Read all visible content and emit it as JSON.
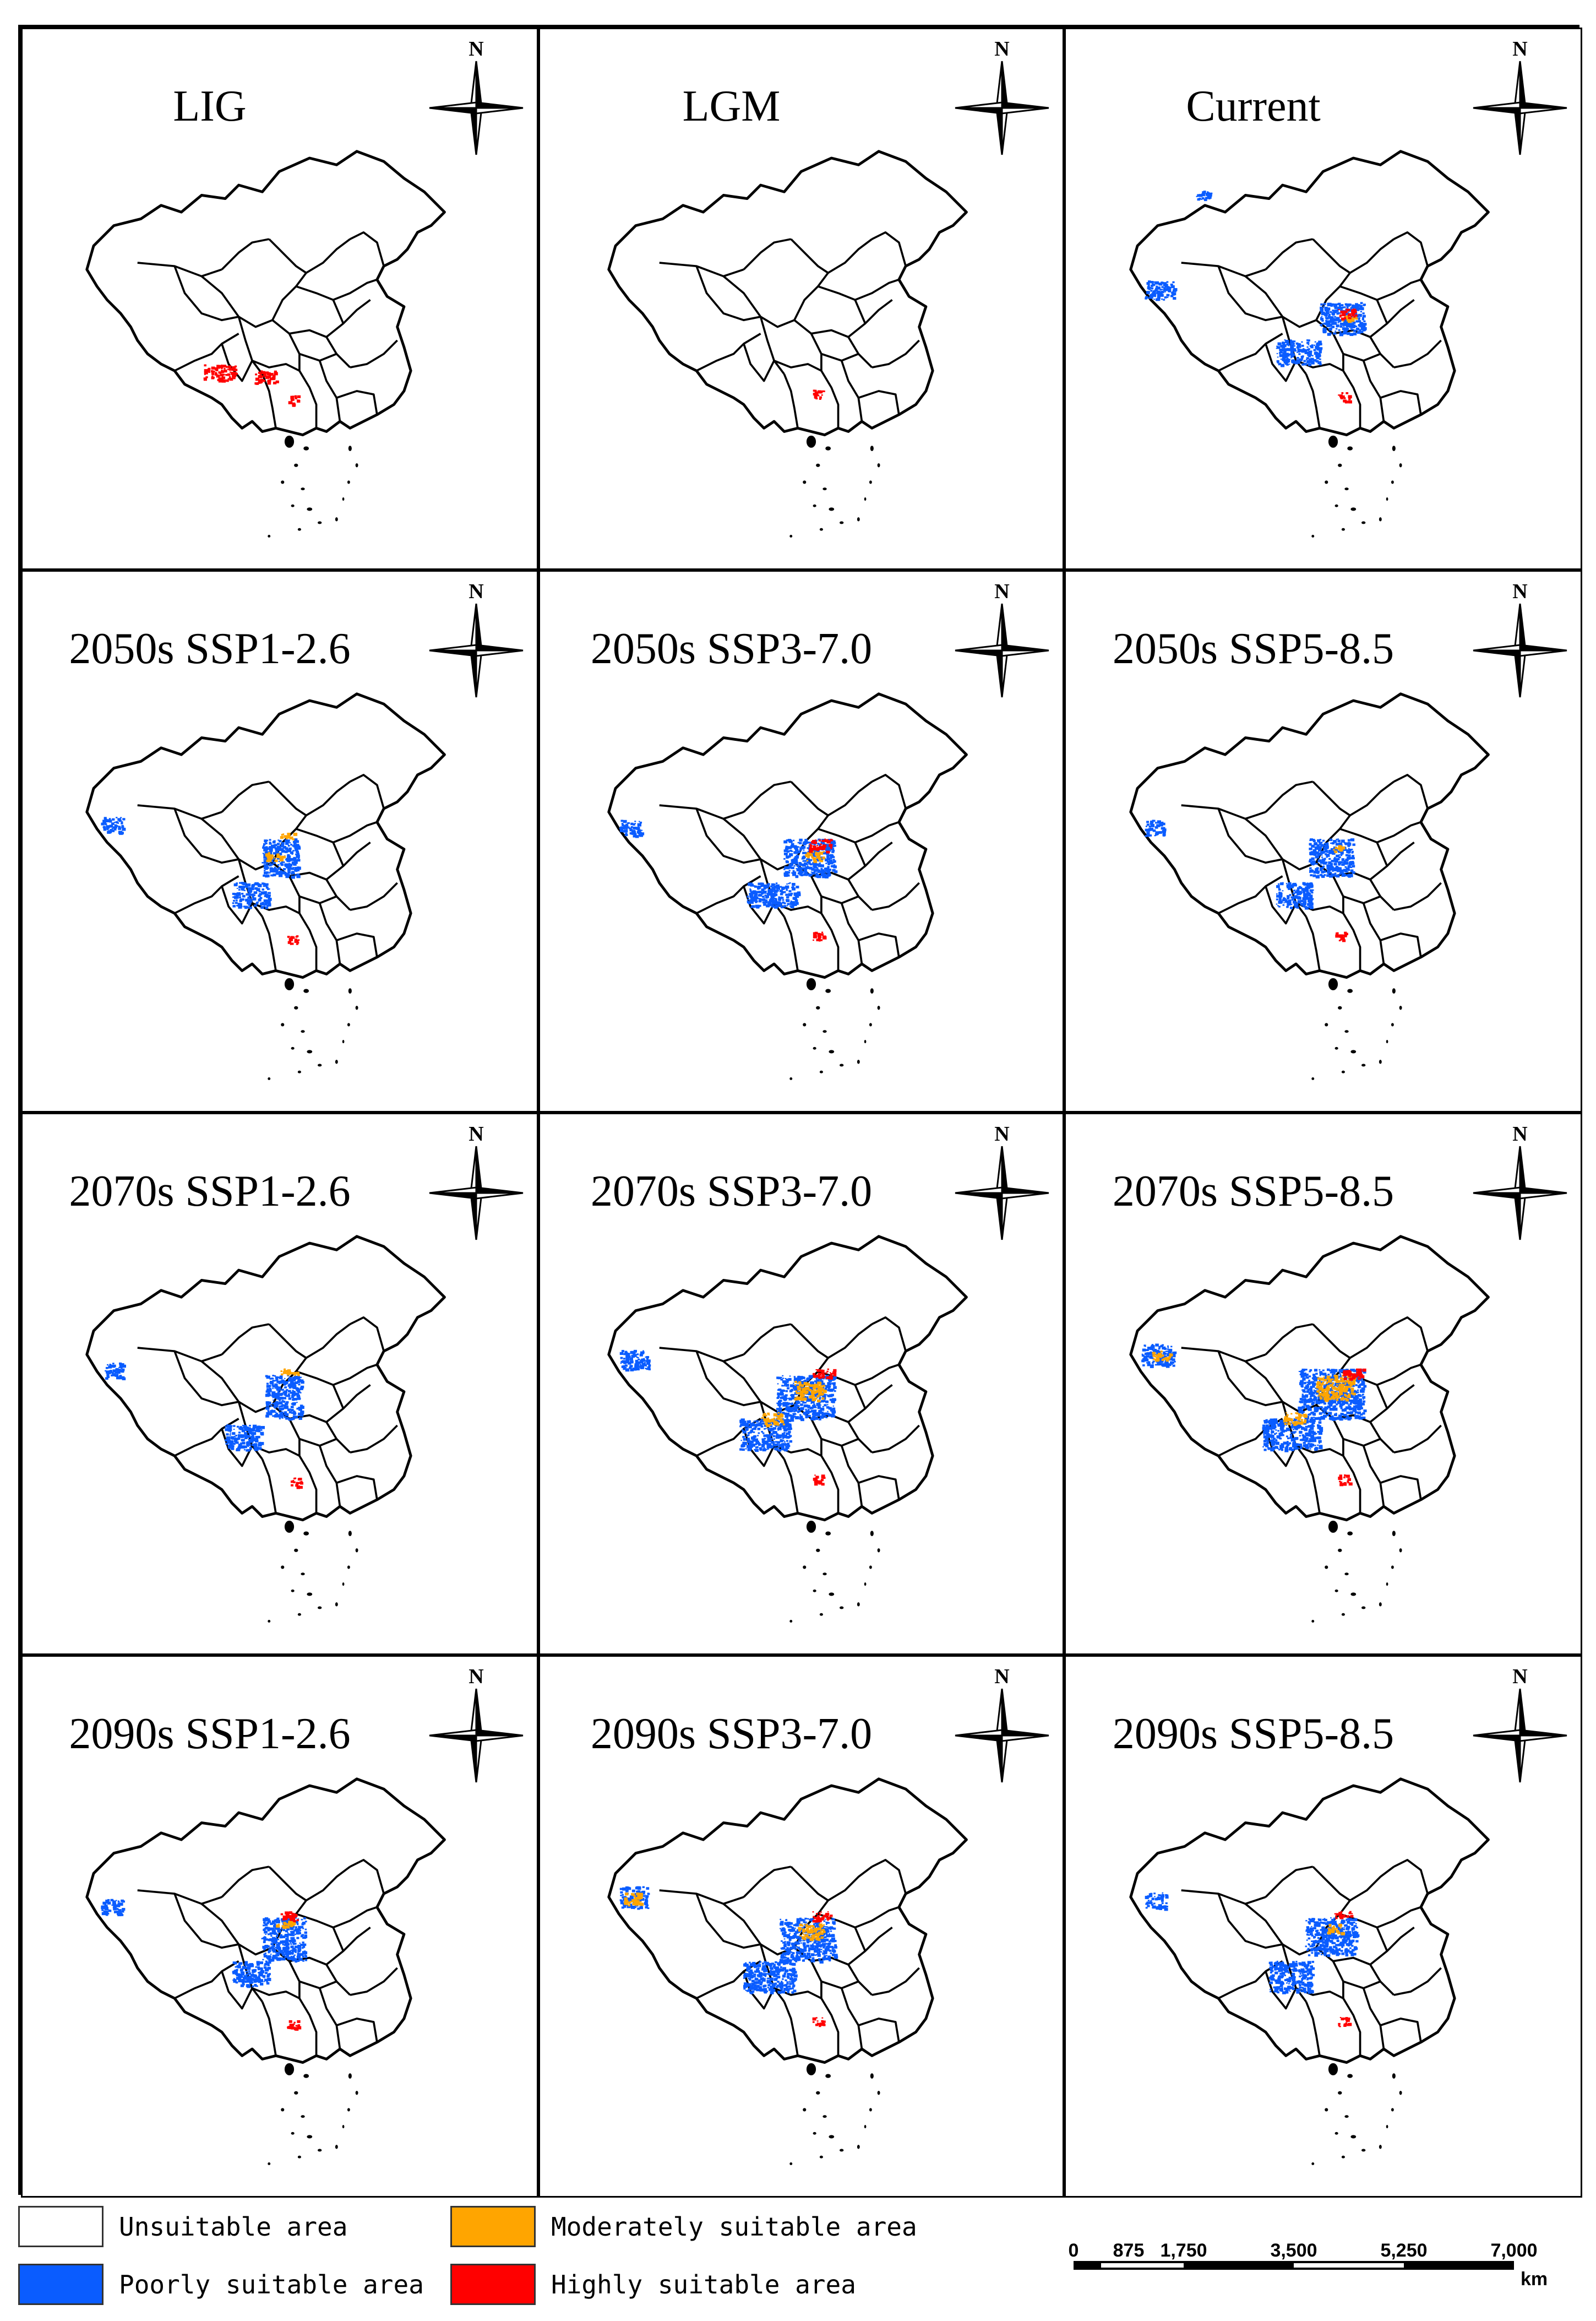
{
  "panels": [
    {
      "title": "LIG",
      "highly": [
        [
          0.3,
          0.62,
          0.09,
          0.05
        ],
        [
          0.44,
          0.64,
          0.06,
          0.04
        ],
        [
          0.53,
          0.72,
          0.03,
          0.03
        ]
      ],
      "moderately": [],
      "poorly": []
    },
    {
      "title": "LGM",
      "highly": [
        [
          0.54,
          0.7,
          0.03,
          0.03
        ]
      ],
      "moderately": [],
      "poorly": []
    },
    {
      "title": "Current",
      "highly": [
        [
          0.55,
          0.44,
          0.05,
          0.03
        ],
        [
          0.55,
          0.71,
          0.03,
          0.03
        ]
      ],
      "moderately": [
        [
          0.56,
          0.46,
          0.04,
          0.02
        ]
      ],
      "poorly": [
        [
          0.5,
          0.42,
          0.12,
          0.1
        ],
        [
          0.38,
          0.54,
          0.12,
          0.08
        ],
        [
          0.02,
          0.35,
          0.08,
          0.06
        ],
        [
          0.16,
          0.06,
          0.04,
          0.03
        ]
      ]
    },
    {
      "title": "2050s SSP1-2.6",
      "highly": [
        [
          0.53,
          0.71,
          0.03,
          0.03
        ]
      ],
      "moderately": [
        [
          0.51,
          0.38,
          0.04,
          0.02
        ],
        [
          0.47,
          0.44,
          0.05,
          0.03
        ]
      ],
      "poorly": [
        [
          0.46,
          0.4,
          0.1,
          0.12
        ],
        [
          0.38,
          0.54,
          0.1,
          0.08
        ],
        [
          0.02,
          0.33,
          0.06,
          0.05
        ]
      ]
    },
    {
      "title": "2050s SSP3-7.0",
      "highly": [
        [
          0.53,
          0.4,
          0.06,
          0.04
        ],
        [
          0.54,
          0.7,
          0.03,
          0.03
        ]
      ],
      "moderately": [
        [
          0.52,
          0.44,
          0.05,
          0.03
        ]
      ],
      "poorly": [
        [
          0.46,
          0.4,
          0.14,
          0.12
        ],
        [
          0.36,
          0.54,
          0.14,
          0.08
        ],
        [
          0.01,
          0.34,
          0.06,
          0.05
        ]
      ]
    },
    {
      "title": "2050s SSP5-8.5",
      "highly": [
        [
          0.54,
          0.7,
          0.03,
          0.03
        ]
      ],
      "moderately": [
        [
          0.53,
          0.42,
          0.03,
          0.02
        ]
      ],
      "poorly": [
        [
          0.47,
          0.4,
          0.12,
          0.12
        ],
        [
          0.38,
          0.54,
          0.1,
          0.08
        ],
        [
          0.02,
          0.34,
          0.05,
          0.05
        ]
      ]
    },
    {
      "title": "2070s SSP1-2.6",
      "highly": [
        [
          0.54,
          0.71,
          0.03,
          0.03
        ]
      ],
      "moderately": [
        [
          0.51,
          0.36,
          0.05,
          0.02
        ]
      ],
      "poorly": [
        [
          0.47,
          0.38,
          0.1,
          0.14
        ],
        [
          0.36,
          0.54,
          0.1,
          0.08
        ],
        [
          0.03,
          0.34,
          0.05,
          0.05
        ]
      ]
    },
    {
      "title": "2070s SSP3-7.0",
      "highly": [
        [
          0.54,
          0.36,
          0.06,
          0.03
        ],
        [
          0.54,
          0.7,
          0.03,
          0.03
        ]
      ],
      "moderately": [
        [
          0.49,
          0.4,
          0.08,
          0.06
        ],
        [
          0.4,
          0.5,
          0.06,
          0.04
        ]
      ],
      "poorly": [
        [
          0.44,
          0.38,
          0.16,
          0.14
        ],
        [
          0.34,
          0.52,
          0.14,
          0.1
        ],
        [
          0.01,
          0.3,
          0.08,
          0.06
        ]
      ]
    },
    {
      "title": "2070s SSP5-8.5",
      "highly": [
        [
          0.56,
          0.36,
          0.06,
          0.03
        ],
        [
          0.55,
          0.7,
          0.03,
          0.03
        ]
      ],
      "moderately": [
        [
          0.49,
          0.38,
          0.1,
          0.08
        ],
        [
          0.4,
          0.5,
          0.06,
          0.04
        ],
        [
          0.04,
          0.3,
          0.05,
          0.03
        ]
      ],
      "poorly": [
        [
          0.44,
          0.36,
          0.18,
          0.16
        ],
        [
          0.34,
          0.52,
          0.16,
          0.1
        ],
        [
          0.01,
          0.28,
          0.09,
          0.07
        ]
      ]
    },
    {
      "title": "2090s SSP1-2.6",
      "highly": [
        [
          0.51,
          0.36,
          0.05,
          0.03
        ],
        [
          0.53,
          0.71,
          0.03,
          0.03
        ]
      ],
      "moderately": [
        [
          0.5,
          0.39,
          0.05,
          0.02
        ]
      ],
      "poorly": [
        [
          0.46,
          0.38,
          0.12,
          0.14
        ],
        [
          0.38,
          0.52,
          0.1,
          0.08
        ],
        [
          0.02,
          0.32,
          0.06,
          0.05
        ]
      ]
    },
    {
      "title": "2090s SSP3-7.0",
      "highly": [
        [
          0.54,
          0.36,
          0.05,
          0.03
        ],
        [
          0.54,
          0.7,
          0.03,
          0.03
        ]
      ],
      "moderately": [
        [
          0.5,
          0.4,
          0.07,
          0.05
        ],
        [
          0.02,
          0.3,
          0.05,
          0.04
        ]
      ],
      "poorly": [
        [
          0.45,
          0.38,
          0.15,
          0.14
        ],
        [
          0.35,
          0.52,
          0.14,
          0.1
        ],
        [
          0.01,
          0.28,
          0.08,
          0.07
        ]
      ]
    },
    {
      "title": "2090s SSP5-8.5",
      "highly": [
        [
          0.54,
          0.36,
          0.05,
          0.02
        ],
        [
          0.55,
          0.7,
          0.03,
          0.03
        ]
      ],
      "moderately": [
        [
          0.52,
          0.4,
          0.04,
          0.03
        ]
      ],
      "poorly": [
        [
          0.46,
          0.38,
          0.14,
          0.12
        ],
        [
          0.36,
          0.52,
          0.12,
          0.1
        ],
        [
          0.02,
          0.3,
          0.06,
          0.05
        ]
      ]
    }
  ],
  "compass_letter": "N",
  "legend": {
    "unsuitable": {
      "label": "Unsuitable area",
      "color": "#ffffff"
    },
    "poorly": {
      "label": "Poorly suitable area",
      "color": "#0a5cff"
    },
    "moderately": {
      "label": "Moderately suitable area",
      "color": "#ffa500"
    },
    "highly": {
      "label": "Highly suitable area",
      "color": "#ff0000"
    }
  },
  "scalebar": {
    "ticks": [
      "0",
      "875",
      "1,750",
      "3,500",
      "5,250",
      "7,000"
    ],
    "tick_values": [
      0,
      875,
      1750,
      3500,
      5250,
      7000
    ],
    "unit": "km"
  }
}
